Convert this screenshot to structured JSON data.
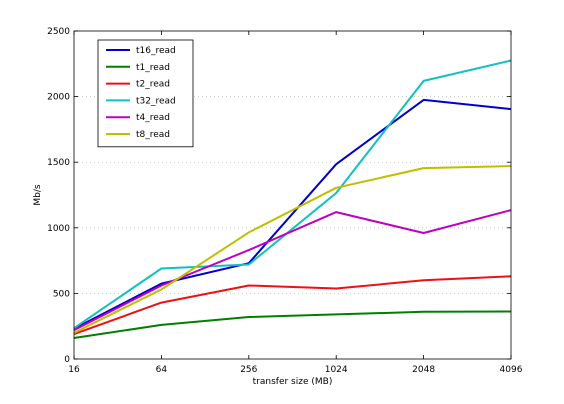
{
  "chart_data": {
    "type": "line",
    "title": "",
    "xlabel": "transfer size (MB)",
    "ylabel": "Mb/s",
    "x": [
      16,
      64,
      256,
      1024,
      2048,
      4096
    ],
    "xticks": [
      "16",
      "64",
      "256",
      "1024",
      "2048",
      "4096"
    ],
    "ylim": [
      0,
      2500
    ],
    "yticks": [
      0,
      500,
      1000,
      1500,
      2000,
      2500
    ],
    "grid": true,
    "legend_position": "top-left",
    "series": [
      {
        "name": "t16_read",
        "color": "#0000cc",
        "values": [
          230,
          575,
          730,
          1485,
          1975,
          1905
        ]
      },
      {
        "name": "t1_read",
        "color": "#008000",
        "values": [
          160,
          260,
          320,
          340,
          360,
          362
        ]
      },
      {
        "name": "t2_read",
        "color": "#ee1111",
        "values": [
          190,
          430,
          560,
          537,
          600,
          630
        ]
      },
      {
        "name": "t32_read",
        "color": "#11c0c0",
        "values": [
          235,
          690,
          720,
          1265,
          2120,
          2275
        ]
      },
      {
        "name": "t4_read",
        "color": "#c000c0",
        "values": [
          220,
          560,
          830,
          1120,
          960,
          1135
        ]
      },
      {
        "name": "t8_read",
        "color": "#bfbf00",
        "values": [
          200,
          530,
          965,
          1305,
          1455,
          1470
        ]
      }
    ]
  }
}
